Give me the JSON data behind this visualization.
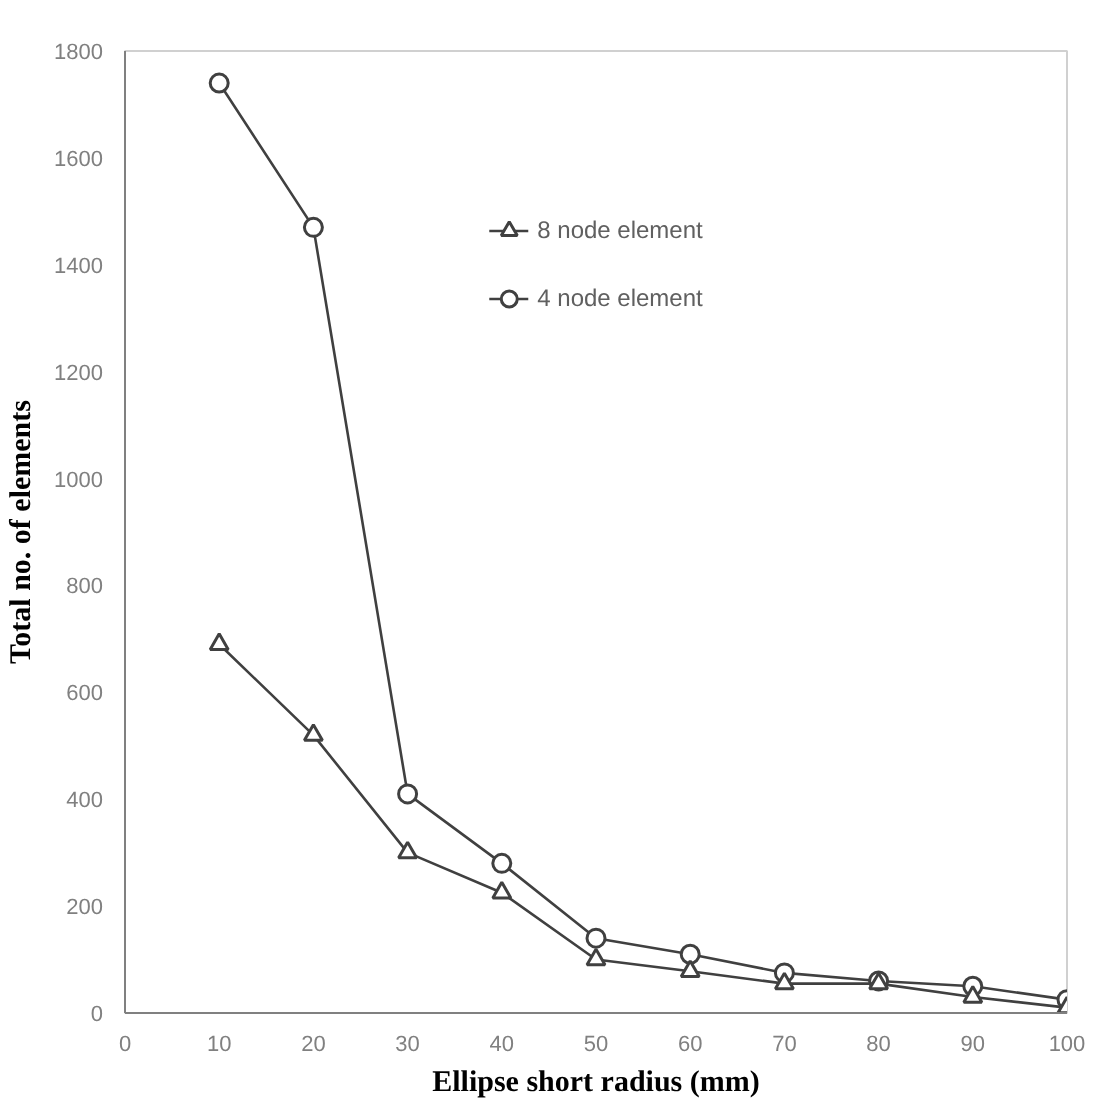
{
  "chart_data": {
    "type": "line",
    "xlabel": "Ellipse short radius (mm)",
    "ylabel": "Total no. of elements",
    "x": [
      10,
      20,
      30,
      40,
      50,
      60,
      70,
      80,
      90,
      100
    ],
    "series": [
      {
        "name": "8 node element",
        "color": "#404040",
        "marker": "triangle",
        "values": [
          690,
          520,
          300,
          225,
          100,
          78,
          55,
          55,
          30,
          10
        ]
      },
      {
        "name": "4 node element",
        "color": "#404040",
        "marker": "circle",
        "values": [
          1740,
          1470,
          410,
          280,
          140,
          110,
          75,
          60,
          50,
          25
        ]
      }
    ],
    "xlim": [
      0,
      100
    ],
    "xticks": [
      0,
      10,
      20,
      30,
      40,
      50,
      60,
      70,
      80,
      90,
      100
    ],
    "ylim": [
      0,
      1800
    ],
    "yticks": [
      0,
      200,
      400,
      600,
      800,
      1000,
      1200,
      1400,
      1600,
      1800
    ],
    "grid": false,
    "legend": "top"
  }
}
